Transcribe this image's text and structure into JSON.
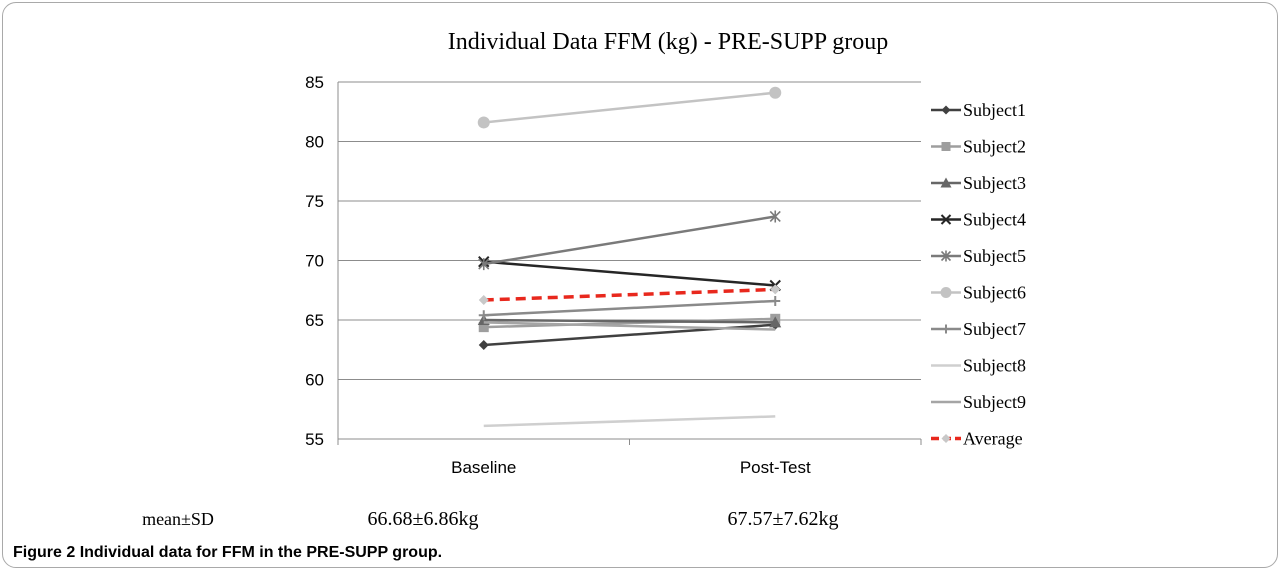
{
  "figure_label": "Figure 2",
  "caption_text": "Individual data for FFM in the PRE-SUPP group.",
  "chart_data": {
    "type": "line",
    "title": "Individual  Data FFM (kg)   - PRE-SUPP group",
    "categories": [
      "Baseline",
      "Post-Test"
    ],
    "ylim": [
      55,
      85
    ],
    "yticks": [
      "55",
      "60",
      "65",
      "70",
      "75",
      "80",
      "85"
    ],
    "grid": true,
    "legend_position": "right",
    "series": [
      {
        "name": "Subject1",
        "values": [
          62.9,
          64.6
        ],
        "color": "#404040",
        "marker": "diamond",
        "dash": false
      },
      {
        "name": "Subject2",
        "values": [
          64.4,
          65.1
        ],
        "color": "#9e9e9e",
        "marker": "square",
        "dash": false
      },
      {
        "name": "Subject3",
        "values": [
          65.0,
          64.8
        ],
        "color": "#666666",
        "marker": "triangle",
        "dash": false
      },
      {
        "name": "Subject4",
        "values": [
          69.9,
          67.9
        ],
        "color": "#262626",
        "marker": "x",
        "dash": false
      },
      {
        "name": "Subject5",
        "values": [
          69.7,
          73.7
        ],
        "color": "#7a7a7a",
        "marker": "star",
        "dash": false
      },
      {
        "name": "Subject6",
        "values": [
          81.6,
          84.1
        ],
        "color": "#c3c3c3",
        "marker": "circle",
        "dash": false
      },
      {
        "name": "Subject7",
        "values": [
          65.4,
          66.6
        ],
        "color": "#8a8a8a",
        "marker": "plus",
        "dash": false
      },
      {
        "name": "Subject8",
        "values": [
          56.1,
          56.9
        ],
        "color": "#cfcfcf",
        "marker": "none",
        "dash": false
      },
      {
        "name": "Subject9",
        "values": [
          64.8,
          64.2
        ],
        "color": "#a5a5a5",
        "marker": "none",
        "dash": false
      },
      {
        "name": "Average",
        "values": [
          66.68,
          67.57
        ],
        "color": "#e8281d",
        "marker": "diamond",
        "dash": true
      }
    ],
    "stats_row": {
      "label": "mean±SD",
      "values": [
        "66.68±6.86kg",
        "67.57±7.62kg"
      ]
    }
  }
}
